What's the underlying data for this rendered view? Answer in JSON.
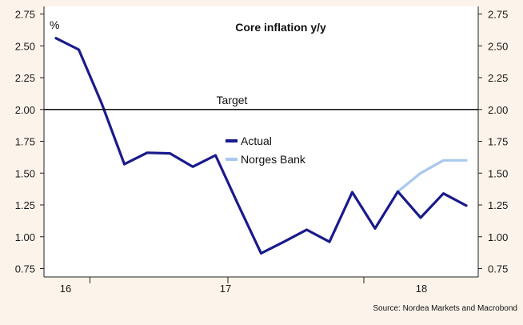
{
  "chart_data": {
    "type": "line",
    "title": "Core inflation y/y",
    "unit_label": "%",
    "source": "Source: Nordea Markets and Macrobond",
    "target_label": "Target",
    "target_value": 2.0,
    "ylim": [
      0.75,
      2.75
    ],
    "y_ticks": [
      "2.75",
      "2.50",
      "2.25",
      "2.00",
      "1.75",
      "1.50",
      "1.25",
      "1.00",
      "0.75"
    ],
    "x_tick_labels": [
      "16",
      "17",
      "18"
    ],
    "grid": false,
    "legend_position": "center",
    "series": [
      {
        "name": "Actual",
        "color": "#1a1a8c",
        "values": [
          2.56,
          2.47,
          2.05,
          1.57,
          1.66,
          1.655,
          1.55,
          1.64,
          1.25,
          0.87,
          0.96,
          1.055,
          0.96,
          1.35,
          1.065,
          1.355,
          1.15,
          1.34,
          1.245
        ]
      },
      {
        "name": "Norges Bank",
        "color": "#a9c8ee",
        "values": [
          null,
          null,
          null,
          null,
          null,
          null,
          null,
          null,
          null,
          null,
          null,
          null,
          null,
          null,
          null,
          1.355,
          1.5,
          1.6,
          1.6
        ]
      }
    ]
  }
}
